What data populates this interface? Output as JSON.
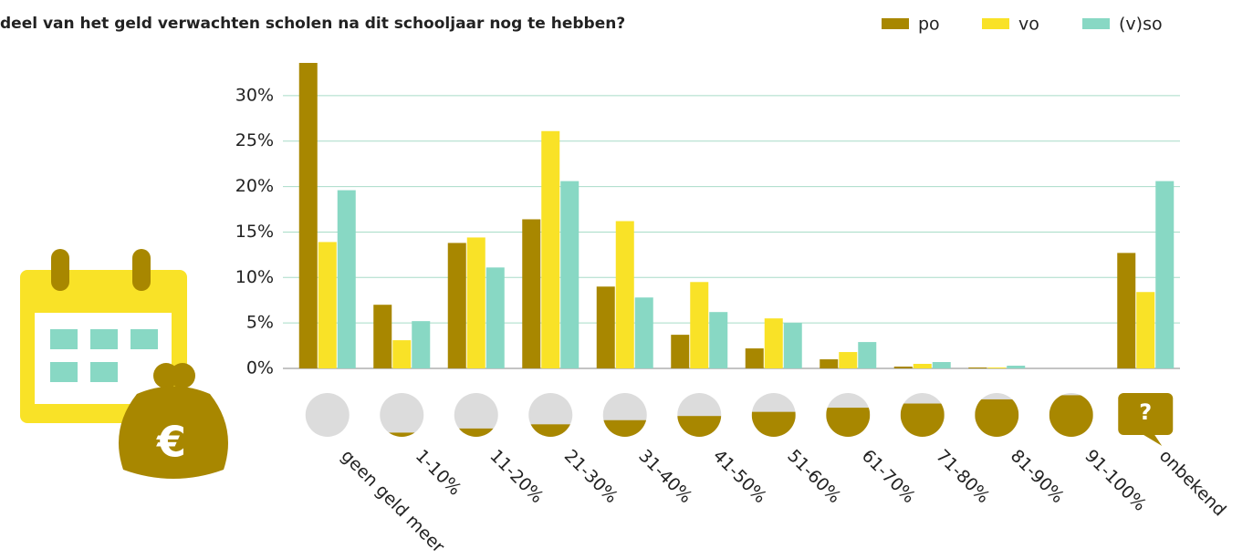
{
  "chart_data": {
    "type": "bar",
    "title": "deel van het geld verwachten scholen na dit schooljaar nog te hebben?",
    "categories": [
      "geen geld meer",
      "1-10%",
      "11-20%",
      "21-30%",
      "31-40%",
      "41-50%",
      "51-60%",
      "61-70%",
      "71-80%",
      "81-90%",
      "91-100%",
      "onbekend"
    ],
    "series": [
      {
        "name": "po",
        "color": "#a88700",
        "values": [
          33.6,
          7.0,
          13.8,
          16.4,
          9.0,
          3.7,
          2.2,
          1.0,
          0.2,
          0.1,
          0,
          12.7
        ]
      },
      {
        "name": "vo",
        "color": "#f9e227",
        "values": [
          13.9,
          3.1,
          14.4,
          26.1,
          16.2,
          9.5,
          5.5,
          1.8,
          0.5,
          0.1,
          0,
          8.4
        ]
      },
      {
        "name": "(v)so",
        "color": "#88d8c4",
        "values": [
          19.6,
          5.2,
          11.1,
          20.6,
          7.8,
          6.2,
          5.0,
          2.9,
          0.7,
          0.3,
          0,
          20.6
        ]
      }
    ],
    "ylim": [
      0,
      34
    ],
    "yticks": [
      {
        "value": 0,
        "label": "0%"
      },
      {
        "value": 5,
        "label": "5%"
      },
      {
        "value": 10,
        "label": "10%"
      },
      {
        "value": 15,
        "label": "15%"
      },
      {
        "value": 20,
        "label": "20%"
      },
      {
        "value": 25,
        "label": "25%"
      },
      {
        "value": 30,
        "label": "30%"
      }
    ],
    "grid": true,
    "legend": "top-right",
    "unknown_icon_text": "?",
    "currency_icon_text": "€"
  }
}
